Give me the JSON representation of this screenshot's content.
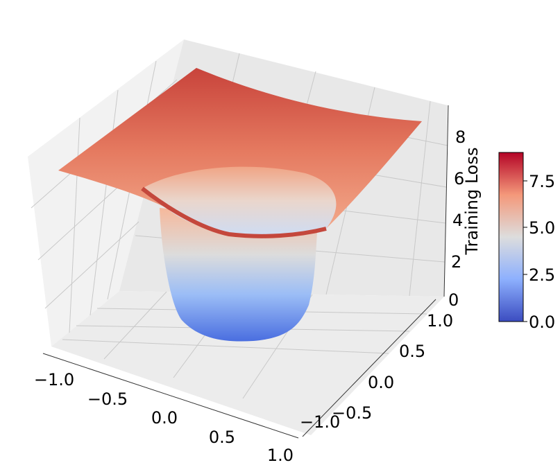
{
  "chart_data": {
    "type": "surface3d",
    "title": "",
    "xlabel": "",
    "ylabel": "",
    "zlabel": "Training Loss",
    "x_ticks": [
      "−1.0",
      "−0.5",
      "0.0",
      "0.5",
      "1.0"
    ],
    "y_ticks": [
      "−1.0",
      "−0.5",
      "0.0",
      "0.5",
      "1.0"
    ],
    "z_ticks": [
      "0",
      "2",
      "4",
      "6",
      "8"
    ],
    "x_range": [
      -1.0,
      1.0
    ],
    "y_range": [
      -1.0,
      1.0
    ],
    "z_range": [
      0,
      9
    ],
    "colormap": "coolwarm",
    "colorbar": {
      "range": [
        0,
        9
      ],
      "ticks": [
        "0.0",
        "2.5",
        "5.0",
        "7.5"
      ]
    },
    "surface": {
      "description_shape": "bowl with steep funnel to a minimum near the center; loss near 0 at center rising to ~9 at the corners",
      "center_min": 0.0,
      "corner_max": 9.0
    }
  }
}
